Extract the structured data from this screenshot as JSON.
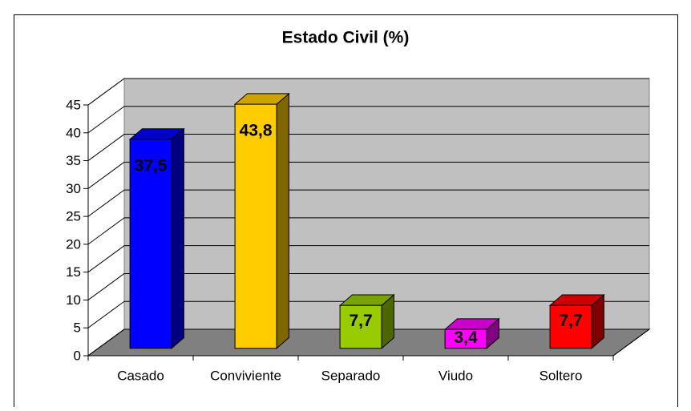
{
  "chart_data": {
    "type": "bar3d",
    "title": "Estado Civil (%)",
    "categories": [
      "Casado",
      "Conviviente",
      "Separado",
      "Viudo",
      "Soltero"
    ],
    "values": [
      37.5,
      43.8,
      7.7,
      3.4,
      7.7
    ],
    "value_labels": [
      "37,5",
      "43,8",
      "7,7",
      "3,4",
      "7,7"
    ],
    "colors": [
      "#0000ff",
      "#ffcc00",
      "#99cc00",
      "#ff00ff",
      "#ff0000"
    ],
    "ylim": [
      0,
      45
    ],
    "yticks": [
      0,
      5,
      10,
      15,
      20,
      25,
      30,
      35,
      40,
      45
    ],
    "grid": true
  }
}
